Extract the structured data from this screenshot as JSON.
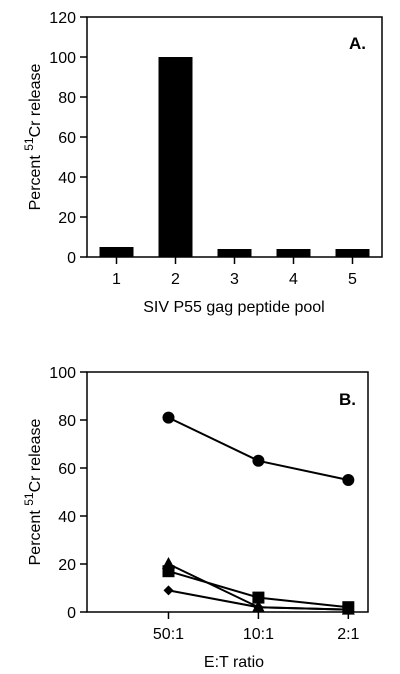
{
  "chart_data": [
    {
      "panel_label": "A.",
      "type": "bar",
      "categories": [
        "1",
        "2",
        "3",
        "4",
        "5"
      ],
      "values": [
        5,
        100,
        4,
        4,
        4
      ],
      "xlabel": "SIV P55 gag peptide pool",
      "ylabel_prefix": "Percent ",
      "ylabel_sup": "51",
      "ylabel_suffix": "Cr release",
      "ylim": [
        0,
        120
      ],
      "yticks": [
        "0",
        "20",
        "40",
        "60",
        "80",
        "100",
        "120"
      ],
      "grid": false,
      "bar_color": "#000000"
    },
    {
      "panel_label": "B.",
      "type": "line",
      "categories": [
        "50:1",
        "10:1",
        "2:1"
      ],
      "xlabel": "E:T ratio",
      "ylabel_prefix": "Percent ",
      "ylabel_sup": "51",
      "ylabel_suffix": "Cr release",
      "ylim": [
        0,
        100
      ],
      "yticks": [
        "0",
        "20",
        "40",
        "60",
        "80",
        "100"
      ],
      "grid": false,
      "series": [
        {
          "marker": "circle",
          "values": [
            81,
            63,
            55
          ]
        },
        {
          "marker": "triangle",
          "values": [
            20,
            2,
            1
          ]
        },
        {
          "marker": "square",
          "values": [
            17,
            6,
            2
          ]
        },
        {
          "marker": "diamond",
          "values": [
            9,
            2,
            1
          ]
        }
      ],
      "line_color": "#000000"
    }
  ]
}
